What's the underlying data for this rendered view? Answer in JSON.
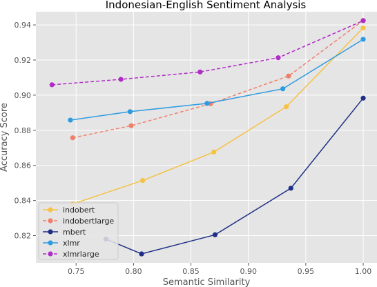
{
  "chart_data": {
    "type": "line",
    "title": "Indonesian-English Sentiment Analysis",
    "xlabel": "Semantic Similarity",
    "ylabel": "Accuracy Score",
    "xlim": [
      0.715,
      1.012
    ],
    "ylim": [
      0.8045,
      0.9475
    ],
    "xticks": [
      0.75,
      0.8,
      0.85,
      0.9,
      0.95,
      1.0
    ],
    "xtick_labels": [
      "0.75",
      "0.80",
      "0.85",
      "0.90",
      "0.95",
      "1.00"
    ],
    "yticks": [
      0.82,
      0.84,
      0.86,
      0.88,
      0.9,
      0.92,
      0.94
    ],
    "ytick_labels": [
      "0.82",
      "0.84",
      "0.86",
      "0.88",
      "0.90",
      "0.92",
      "0.94"
    ],
    "grid": true,
    "legend_position": "bottom-left",
    "series": [
      {
        "name": "indobert",
        "color": "#f5c242",
        "dash": "solid",
        "x": [
          0.747,
          0.808,
          0.87,
          0.933,
          1.0
        ],
        "y": [
          0.838,
          0.8514,
          0.8676,
          0.8934,
          0.9383
        ]
      },
      {
        "name": "indobertlarge",
        "color": "#f07f6a",
        "dash": "dashed",
        "x": [
          0.747,
          0.798,
          0.867,
          0.935,
          1.0
        ],
        "y": [
          0.8757,
          0.8826,
          0.8951,
          0.9109,
          0.9425
        ]
      },
      {
        "name": "mbert",
        "color": "#1f2f86",
        "dash": "solid",
        "x": [
          0.776,
          0.807,
          0.871,
          0.937,
          1.0
        ],
        "y": [
          0.818,
          0.8096,
          0.8205,
          0.847,
          0.8983
        ]
      },
      {
        "name": "xlmr",
        "color": "#2e9be0",
        "dash": "solid",
        "x": [
          0.745,
          0.797,
          0.864,
          0.93,
          1.0
        ],
        "y": [
          0.8858,
          0.8906,
          0.8953,
          0.9036,
          0.9318
        ]
      },
      {
        "name": "xlmrlarge",
        "color": "#b02cc6",
        "dash": "dashed",
        "x": [
          0.729,
          0.789,
          0.858,
          0.926,
          1.0
        ],
        "y": [
          0.9059,
          0.909,
          0.9132,
          0.9213,
          0.9424
        ]
      }
    ]
  }
}
